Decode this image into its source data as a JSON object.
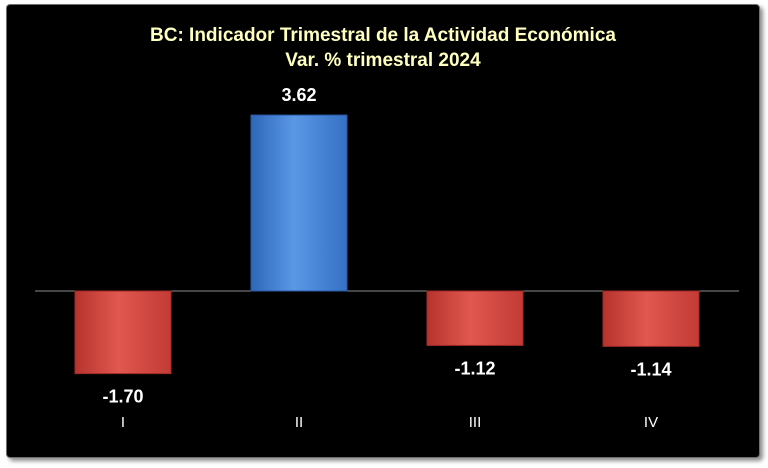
{
  "chart_data": {
    "type": "bar",
    "title": "BC: Indicador Trimestral de la Actividad Económica",
    "subtitle": "Var. % trimestral 2024",
    "categories": [
      "I",
      "II",
      "III",
      "IV"
    ],
    "values": [
      -1.7,
      3.62,
      -1.12,
      -1.14
    ],
    "data_labels": [
      "-1.70",
      "3.62",
      "-1.12",
      "-1.14"
    ],
    "xlabel": "",
    "ylabel": "",
    "ylim": [
      -1.9,
      3.9
    ],
    "grid": false,
    "legend": "none",
    "colors": {
      "positive": "#4a86d8",
      "negative": "#d24a44",
      "background": "#000000",
      "title": "#ffffc0"
    }
  }
}
